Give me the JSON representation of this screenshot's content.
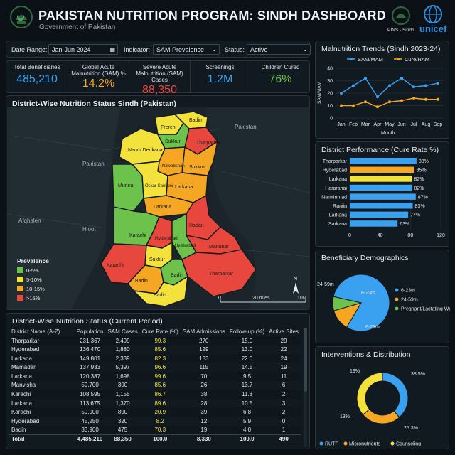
{
  "header": {
    "title": "PAKISTAN NUTRITION PROGRAM: SINDH DASHBOARD",
    "subtitle": "Government of Pakistan",
    "pins_label": "PINS - Sindh",
    "unicef_label": "unicef"
  },
  "filters": {
    "date_label": "Date Range:",
    "date_value": "Jan-Jun 2024",
    "indicator_label": "Indicator:",
    "indicator_value": "SAM Prevalence",
    "status_label": "Status:",
    "status_value": "Active"
  },
  "kpis": [
    {
      "label": "Total Beneficiaries",
      "value": "485,210",
      "color": "#3aa0f0"
    },
    {
      "label": "Global Acute Malnutrition (GAM) %",
      "value": "14.2%",
      "color": "#f5a623"
    },
    {
      "label": "Severe Acute Malnutrition (SAM) Cases",
      "value": "88,350",
      "color": "#e8473d"
    },
    {
      "label": "Screenings",
      "value": "1.2M",
      "color": "#3aa0f0"
    },
    {
      "label": "Children Cured",
      "value": "76%",
      "color": "#6cc24a"
    }
  ],
  "map": {
    "title": "District-Wise Nutrition Status Sindh (Pakistan)",
    "outside": {
      "pakistan_top": "Pakistan",
      "pakistan_mid": "Pakistan",
      "afghan": "Afqhalen",
      "hidot": "Hioot"
    },
    "districts": [
      {
        "name": "Freren",
        "color": "#f2e23b"
      },
      {
        "name": "Badin",
        "color": "#f2e23b"
      },
      {
        "name": "Sukkur",
        "color": "#6cc24a"
      },
      {
        "name": "Tharparkar",
        "color": "#e8473d"
      },
      {
        "name": "Naum Deukana",
        "color": "#f2e23b"
      },
      {
        "name": "Nawabshah",
        "color": "#f5a623"
      },
      {
        "name": "Sukkrur",
        "color": "#f5a623"
      },
      {
        "name": "Munira",
        "color": "#6cc24a"
      },
      {
        "name": "Oskar Sankuer",
        "color": "#f2e23b"
      },
      {
        "name": "Larkana",
        "color": "#f5a623"
      },
      {
        "name": "Larkana",
        "color": "#f5a623"
      },
      {
        "name": "Hadan",
        "color": "#e8473d"
      },
      {
        "name": "Karachi",
        "color": "#6cc24a"
      },
      {
        "name": "Hyderabad",
        "color": "#e8473d"
      },
      {
        "name": "Hyderabad",
        "color": "#6cc24a"
      },
      {
        "name": "Manunar",
        "color": "#e8473d"
      },
      {
        "name": "Karachi",
        "color": "#e8473d"
      },
      {
        "name": "Sukkur",
        "color": "#f2e23b"
      },
      {
        "name": "Badin",
        "color": "#f5a623"
      },
      {
        "name": "Badin",
        "color": "#6cc24a"
      },
      {
        "name": "Tharparkar",
        "color": "#e8473d"
      },
      {
        "name": "Badin",
        "color": "#f2e23b"
      }
    ],
    "legend": {
      "title": "Prevalence",
      "items": [
        {
          "label": "0-5%",
          "color": "#6cc24a"
        },
        {
          "label": "5-10%",
          "color": "#f2e23b"
        },
        {
          "label": "10-15%",
          "color": "#f5a623"
        },
        {
          "label": ">15%",
          "color": "#e8473d"
        }
      ]
    },
    "scale": {
      "start": "0",
      "mid": "20 mies",
      "end": "10M"
    },
    "north": "N"
  },
  "table": {
    "title": "District-Wise Nutrition Status (Current Period)",
    "headers": [
      "District Name (A-Z)",
      "Population",
      "SAM Cases",
      "Cure Rate (%)",
      "SAM Admissions",
      "Follow-up (%)",
      "Active Sites"
    ],
    "rows": [
      {
        "cells": [
          "Tharparkar",
          "231,367",
          "2,499",
          "99.3",
          "270",
          "15.0",
          "29"
        ],
        "cure_color": "#f2e23b"
      },
      {
        "cells": [
          "Hyderabad",
          "136,470",
          "1,880",
          "85.6",
          "129",
          "13.0",
          "22"
        ],
        "cure_color": "#f2e23b"
      },
      {
        "cells": [
          "Larkana",
          "149,801",
          "2,339",
          "82.3",
          "133",
          "22.0",
          "24"
        ],
        "cure_color": "#f2e23b"
      },
      {
        "cells": [
          "Mamadar",
          "137,933",
          "5,397",
          "96.6",
          "115",
          "14.5",
          "19"
        ],
        "cure_color": "#f2e23b"
      },
      {
        "cells": [
          "Larkana",
          "120,387",
          "1,698",
          "99.6",
          "70",
          "9.5",
          "11"
        ],
        "cure_color": "#f2e23b"
      },
      {
        "cells": [
          "Manvisha",
          "59,700",
          "300",
          "85.6",
          "26",
          "13.7",
          "6"
        ],
        "cure_color": "#f2e23b"
      },
      {
        "cells": [
          "Karachi",
          "108,595",
          "1,155",
          "86.7",
          "38",
          "11.3",
          "2"
        ],
        "cure_color": "#f2e23b"
      },
      {
        "cells": [
          "Larkana",
          "113,675",
          "1,370",
          "89.6",
          "28",
          "10.5",
          "3"
        ],
        "cure_color": "#f2e23b"
      },
      {
        "cells": [
          "Karachi",
          "59,900",
          "890",
          "20.9",
          "39",
          "6.8",
          "2"
        ],
        "cure_color": "#f2e23b"
      },
      {
        "cells": [
          "Hyderabad",
          "45,250",
          "320",
          "8.2",
          "12",
          "5.9",
          "0"
        ],
        "cure_color": "#f2e23b"
      },
      {
        "cells": [
          "Badin",
          "33,900",
          "475",
          "70.3",
          "19",
          "4.0",
          "1"
        ],
        "cure_color": "#f2e23b"
      }
    ],
    "total": [
      "Total",
      "4,485,210",
      "88,350",
      "100.0",
      "8,330",
      "100.0",
      "490"
    ]
  },
  "trends": {
    "title": "Malnutrition Trends (Sindh 2023-24)",
    "ylabel": "SAM/MAM",
    "xlabel": "Month",
    "legend": [
      "SAM/MAM",
      "Cure/RAM"
    ],
    "chart_data": {
      "type": "line",
      "categories": [
        "Jan",
        "Feb",
        "Mar",
        "Apr",
        "May",
        "Jun",
        "Jul",
        "Aug",
        "Sep"
      ],
      "ylim": [
        0,
        40
      ],
      "yticks": [
        "0",
        "10",
        "20",
        "30",
        "40"
      ],
      "series": [
        {
          "name": "SAM/MAM",
          "color": "#3aa0f0",
          "values": [
            20,
            26,
            32,
            17,
            26,
            32,
            25,
            26,
            28
          ]
        },
        {
          "name": "Cure/RAM",
          "color": "#f5a623",
          "values": [
            10,
            10,
            13,
            9,
            13,
            14,
            16,
            15,
            15
          ]
        }
      ]
    }
  },
  "performance": {
    "title": "District Performance (Cure Rate %)",
    "chart_data": {
      "type": "bar",
      "xlim": [
        0,
        120
      ],
      "xticks": [
        "0",
        "40",
        "80",
        "120"
      ],
      "categories": [
        "Tharparkar",
        "Hyderabad",
        "Larkana",
        "Hararahai",
        "Namtinmad",
        "Raniin",
        "Larkana",
        "Sarkana"
      ],
      "values": [
        88,
        85,
        82,
        82,
        87,
        83,
        77,
        63
      ],
      "labels": [
        "88%",
        "85%",
        "82%",
        "82%",
        "87%",
        "83%",
        "77%",
        "63%"
      ],
      "colors": [
        "#3aa0f0",
        "#f5a623",
        "#f2e23b",
        "#3aa0f0",
        "#3aa0f0",
        "#3aa0f0",
        "#3aa0f0",
        "#3aa0f0"
      ]
    }
  },
  "demographics": {
    "title": "Beneficiary Demographics",
    "chart_data": {
      "type": "pie",
      "slices": [
        {
          "label": "6-23m",
          "value": 80,
          "color": "#3aa0f0"
        },
        {
          "label": "24-59m",
          "value": 12,
          "color": "#f5a623"
        },
        {
          "label": "Pregnant/Lactating Women",
          "value": 8,
          "color": "#6cc24a"
        }
      ]
    },
    "outer_labels": {
      "top": "6-23m",
      "left": "24-59m",
      "bottom": "6-23m"
    }
  },
  "interventions": {
    "title": "Interventions & Distribution",
    "chart_data": {
      "type": "pie",
      "slices": [
        {
          "label": "RUTF",
          "value": 38.5,
          "color": "#3aa0f0"
        },
        {
          "label": "Micronutrients",
          "value": 25.3,
          "color": "#f5a623"
        },
        {
          "label": "Counseling",
          "value": 36.2,
          "color": "#f2e23b"
        }
      ]
    },
    "outer_labels": {
      "top_right": "38.5%",
      "top_left": "19%",
      "left": "13%",
      "bottom_right": "25.3%"
    }
  }
}
